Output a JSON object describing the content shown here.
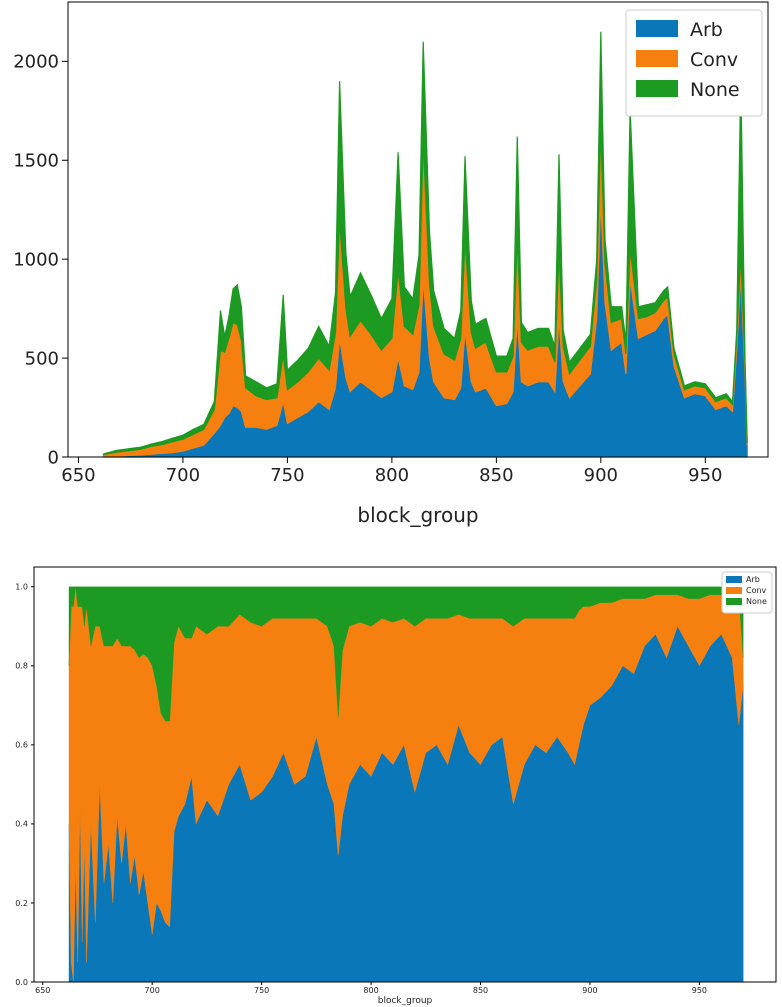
{
  "colors": {
    "Arb": "#0a77b8",
    "Conv": "#f5800f",
    "None": "#1d9a21"
  },
  "chart_data": [
    {
      "type": "area",
      "stacked": true,
      "normalized": false,
      "title": "",
      "xlabel": "block_group",
      "ylabel": "",
      "xlim": [
        645,
        980
      ],
      "ylim": [
        0,
        2300
      ],
      "xticks": [
        650,
        700,
        750,
        800,
        850,
        900,
        950
      ],
      "yticks": [
        0,
        500,
        1000,
        1500,
        2000
      ],
      "legend": {
        "position": "top-right",
        "entries": [
          "Arb",
          "Conv",
          "None"
        ]
      },
      "grid": false,
      "x": [
        662,
        668,
        675,
        680,
        685,
        690,
        695,
        700,
        705,
        710,
        715,
        718,
        720,
        722,
        724,
        726,
        728,
        730,
        735,
        740,
        745,
        748,
        750,
        755,
        760,
        765,
        770,
        773,
        775,
        778,
        780,
        785,
        790,
        795,
        800,
        803,
        806,
        810,
        813,
        815,
        818,
        820,
        825,
        830,
        833,
        835,
        838,
        840,
        843,
        845,
        850,
        855,
        858,
        860,
        862,
        865,
        870,
        875,
        878,
        880,
        882,
        885,
        890,
        895,
        898,
        900,
        902,
        905,
        910,
        912,
        914,
        918,
        922,
        926,
        930,
        932,
        935,
        940,
        945,
        950,
        955,
        960,
        963,
        965,
        967,
        969,
        970
      ],
      "series": [
        {
          "name": "Arb",
          "values": [
            2,
            5,
            8,
            10,
            14,
            18,
            22,
            30,
            45,
            60,
            120,
            160,
            200,
            220,
            260,
            250,
            230,
            150,
            150,
            140,
            160,
            280,
            170,
            200,
            230,
            280,
            240,
            350,
            600,
            400,
            330,
            380,
            340,
            300,
            330,
            500,
            360,
            340,
            430,
            900,
            500,
            380,
            300,
            290,
            350,
            640,
            380,
            330,
            340,
            350,
            260,
            270,
            330,
            700,
            380,
            360,
            380,
            380,
            330,
            700,
            380,
            300,
            360,
            420,
            700,
            1300,
            780,
            540,
            580,
            420,
            900,
            600,
            620,
            640,
            700,
            720,
            460,
            300,
            320,
            310,
            240,
            260,
            230,
            540,
            920,
            420,
            60
          ]
        },
        {
          "name": "Conv",
          "values": [
            10,
            20,
            25,
            30,
            40,
            45,
            55,
            60,
            70,
            80,
            120,
            380,
            330,
            380,
            420,
            420,
            360,
            200,
            160,
            150,
            140,
            240,
            170,
            180,
            200,
            220,
            200,
            280,
            600,
            350,
            280,
            310,
            280,
            240,
            270,
            440,
            300,
            280,
            340,
            700,
            380,
            280,
            220,
            200,
            250,
            460,
            250,
            220,
            230,
            230,
            170,
            160,
            180,
            420,
            200,
            180,
            180,
            180,
            150,
            330,
            180,
            120,
            130,
            140,
            200,
            350,
            200,
            140,
            120,
            100,
            160,
            100,
            90,
            90,
            90,
            90,
            60,
            40,
            40,
            40,
            40,
            40,
            35,
            60,
            110,
            50,
            10
          ]
        },
        {
          "name": "None",
          "values": [
            3,
            8,
            10,
            10,
            12,
            15,
            18,
            20,
            25,
            25,
            40,
            200,
            80,
            110,
            170,
            200,
            170,
            60,
            70,
            60,
            70,
            300,
            100,
            110,
            120,
            160,
            120,
            200,
            700,
            280,
            200,
            240,
            200,
            160,
            200,
            600,
            200,
            180,
            250,
            500,
            260,
            180,
            130,
            110,
            140,
            420,
            160,
            120,
            120,
            120,
            80,
            80,
            90,
            500,
            100,
            90,
            90,
            90,
            80,
            500,
            80,
            60,
            60,
            60,
            100,
            500,
            120,
            80,
            60,
            60,
            700,
            60,
            60,
            50,
            50,
            50,
            30,
            20,
            20,
            20,
            20,
            20,
            15,
            40,
            900,
            30,
            30
          ]
        }
      ]
    },
    {
      "type": "area",
      "stacked": true,
      "normalized": true,
      "title": "",
      "xlabel": "block_group",
      "ylabel": "",
      "xlim": [
        646,
        985
      ],
      "ylim": [
        0,
        1.05
      ],
      "xticks": [
        650,
        700,
        750,
        800,
        850,
        900,
        950
      ],
      "yticks": [
        0.0,
        0.2,
        0.4,
        0.6,
        0.8,
        1.0
      ],
      "legend": {
        "position": "top-right",
        "entries": [
          "Arb",
          "Conv",
          "None"
        ]
      },
      "grid": false,
      "x": [
        662,
        663,
        664,
        665,
        666,
        667,
        668,
        669,
        670,
        672,
        674,
        676,
        678,
        680,
        682,
        684,
        686,
        688,
        690,
        692,
        694,
        696,
        698,
        700,
        702,
        704,
        706,
        708,
        710,
        712,
        715,
        718,
        720,
        725,
        730,
        735,
        740,
        745,
        750,
        755,
        760,
        765,
        770,
        775,
        780,
        783,
        785,
        787,
        790,
        795,
        800,
        805,
        810,
        815,
        820,
        825,
        830,
        835,
        840,
        845,
        850,
        855,
        860,
        865,
        870,
        875,
        880,
        885,
        890,
        893,
        895,
        897,
        900,
        905,
        910,
        915,
        920,
        925,
        930,
        935,
        940,
        945,
        950,
        955,
        960,
        965,
        968,
        970
      ],
      "series": [
        {
          "name": "Arb",
          "values": [
            0.4,
            0.05,
            0.0,
            0.3,
            0.05,
            0.45,
            0.1,
            0.35,
            0.05,
            0.4,
            0.15,
            0.5,
            0.25,
            0.35,
            0.2,
            0.42,
            0.3,
            0.4,
            0.25,
            0.32,
            0.22,
            0.28,
            0.2,
            0.12,
            0.2,
            0.18,
            0.15,
            0.14,
            0.38,
            0.42,
            0.45,
            0.52,
            0.4,
            0.46,
            0.42,
            0.5,
            0.55,
            0.46,
            0.48,
            0.52,
            0.58,
            0.5,
            0.52,
            0.62,
            0.5,
            0.45,
            0.32,
            0.42,
            0.5,
            0.55,
            0.52,
            0.58,
            0.55,
            0.6,
            0.48,
            0.58,
            0.6,
            0.55,
            0.65,
            0.58,
            0.55,
            0.6,
            0.62,
            0.45,
            0.55,
            0.6,
            0.58,
            0.62,
            0.58,
            0.55,
            0.6,
            0.65,
            0.7,
            0.72,
            0.75,
            0.8,
            0.78,
            0.85,
            0.88,
            0.82,
            0.9,
            0.85,
            0.8,
            0.85,
            0.88,
            0.82,
            0.65,
            0.75
          ]
        },
        {
          "name": "Conv",
          "values": [
            0.4,
            0.9,
            0.95,
            0.7,
            0.9,
            0.5,
            0.85,
            0.55,
            0.9,
            0.45,
            0.75,
            0.4,
            0.6,
            0.5,
            0.65,
            0.45,
            0.55,
            0.45,
            0.6,
            0.52,
            0.6,
            0.55,
            0.62,
            0.68,
            0.55,
            0.5,
            0.51,
            0.52,
            0.48,
            0.48,
            0.42,
            0.35,
            0.5,
            0.42,
            0.48,
            0.4,
            0.38,
            0.45,
            0.42,
            0.4,
            0.34,
            0.42,
            0.4,
            0.3,
            0.4,
            0.4,
            0.35,
            0.42,
            0.4,
            0.36,
            0.38,
            0.34,
            0.36,
            0.32,
            0.42,
            0.34,
            0.32,
            0.37,
            0.28,
            0.34,
            0.37,
            0.32,
            0.3,
            0.45,
            0.37,
            0.32,
            0.34,
            0.3,
            0.34,
            0.37,
            0.34,
            0.3,
            0.25,
            0.24,
            0.21,
            0.17,
            0.19,
            0.12,
            0.1,
            0.16,
            0.08,
            0.12,
            0.17,
            0.13,
            0.1,
            0.14,
            0.33,
            0.07
          ]
        },
        {
          "name": "None",
          "values": [
            0.2,
            0.05,
            0.05,
            0.0,
            0.05,
            0.05,
            0.05,
            0.1,
            0.05,
            0.15,
            0.1,
            0.1,
            0.15,
            0.15,
            0.15,
            0.13,
            0.15,
            0.15,
            0.15,
            0.16,
            0.18,
            0.17,
            0.18,
            0.2,
            0.25,
            0.32,
            0.34,
            0.34,
            0.14,
            0.1,
            0.13,
            0.13,
            0.1,
            0.12,
            0.1,
            0.1,
            0.07,
            0.09,
            0.1,
            0.08,
            0.08,
            0.08,
            0.08,
            0.08,
            0.1,
            0.15,
            0.33,
            0.16,
            0.1,
            0.09,
            0.1,
            0.08,
            0.09,
            0.08,
            0.1,
            0.08,
            0.08,
            0.08,
            0.07,
            0.08,
            0.08,
            0.08,
            0.08,
            0.1,
            0.08,
            0.08,
            0.08,
            0.08,
            0.08,
            0.08,
            0.06,
            0.05,
            0.05,
            0.04,
            0.04,
            0.03,
            0.03,
            0.03,
            0.02,
            0.02,
            0.02,
            0.03,
            0.03,
            0.02,
            0.02,
            0.04,
            0.02,
            0.18
          ]
        }
      ]
    }
  ]
}
